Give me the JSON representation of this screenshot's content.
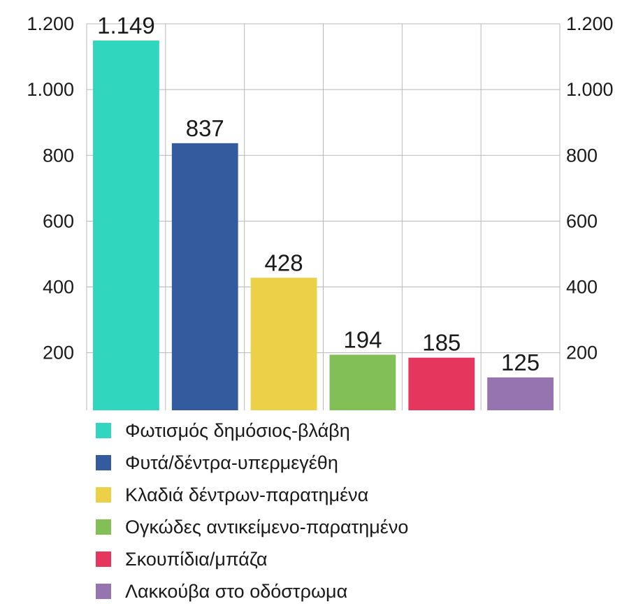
{
  "chart_data": {
    "type": "bar",
    "categories": [
      "Φωτισμός δημόσιος-βλάβη",
      "Φυτά/δέντρα-υπερμεγέθη",
      "Κλαδιά δέντρων-παρατημένα",
      "Ογκώδες αντικείμενο-παρατημένο",
      "Σκουπίδια/μπάζα",
      "Λακκούβα στο οδόστρωμα"
    ],
    "values": [
      1149,
      837,
      428,
      194,
      185,
      125
    ],
    "value_labels": [
      "1.149",
      "837",
      "428",
      "194",
      "185",
      "125"
    ],
    "colors": [
      "#31d6bf",
      "#335b9e",
      "#ecd047",
      "#82bf56",
      "#e5365e",
      "#9674af"
    ],
    "ylim": [
      25,
      1200
    ],
    "yticks": [
      200,
      400,
      600,
      800,
      1000,
      1200
    ],
    "ytick_labels": [
      "200",
      "400",
      "600",
      "800",
      "1.000",
      "1.200"
    ],
    "dual_y_axis": true,
    "grid": true,
    "legend_position": "bottom"
  }
}
